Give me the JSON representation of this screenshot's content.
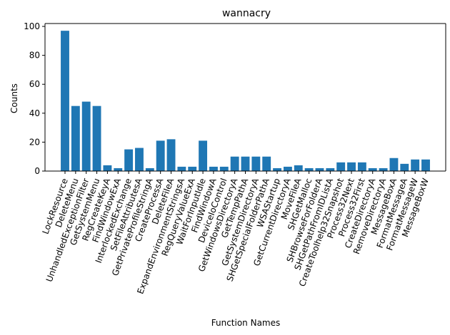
{
  "chart_data": {
    "type": "bar",
    "title": "wannacry",
    "xlabel": "Function Names",
    "ylabel": "Counts",
    "ylim": [
      0,
      102
    ],
    "yticks": [
      0,
      20,
      40,
      60,
      80,
      100
    ],
    "bar_color": "#1f77b4",
    "categories": [
      "LockResource",
      "DeleteMenu",
      "UnhandledExceptionFilter",
      "GetSystemMenu",
      "RegCreateKeyA",
      "FindWindowExA",
      "InterlockedExchange",
      "SetFileAttributesA",
      "GetPrivateProfileStringA",
      "CreateProcessA",
      "DeleteFileA",
      "ExpandEnvironmentStringsA",
      "RegQueryValueExA",
      "WaitForInputIdle",
      "FindWindowA",
      "DeviceIoControl",
      "GetWindowsDirectoryA",
      "GetTempPathA",
      "GetSystemDirectoryA",
      "SHGetSpecialFolderPathA",
      "WSAStartup",
      "GetCurrentDirectoryA",
      "MoveFileA",
      "SHGetMalloc",
      "SHBrowseForFolderA",
      "SHGetPathFromIDListA",
      "CreateToolhelp32Snapshot",
      "Process32Next",
      "Process32First",
      "CreateDirectoryA",
      "RemoveDirectoryA",
      "MessageBoxA",
      "FormatMessageA",
      "FormatMessageW",
      "MessageBoxW"
    ],
    "values": [
      97,
      45,
      48,
      45,
      4,
      2,
      15,
      16,
      2,
      21,
      22,
      3,
      3,
      21,
      3,
      3,
      10,
      10,
      10,
      10,
      2,
      3,
      4,
      2,
      2,
      2,
      6,
      6,
      6,
      2,
      2,
      9,
      5,
      8,
      8
    ]
  }
}
